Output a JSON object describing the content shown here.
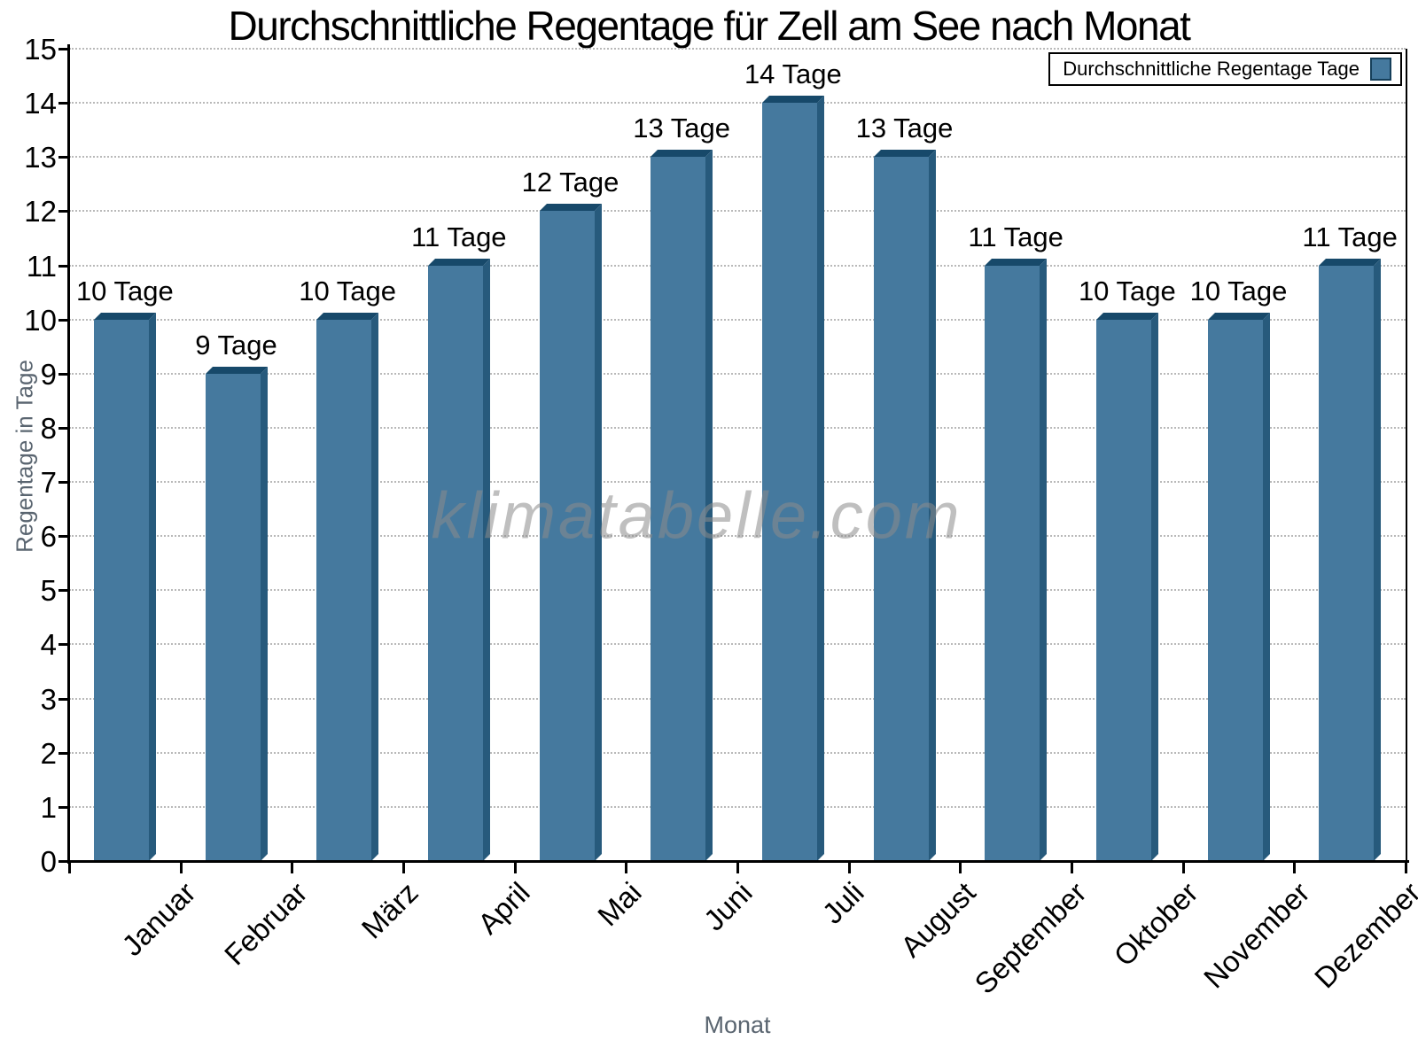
{
  "title": "Durchschnittliche Regentage für Zell am See nach Monat",
  "watermark": "klimatabelle.com",
  "legend": {
    "label": "Durchschnittliche Regentage Tage"
  },
  "y_axis": {
    "title": "Regentage in Tage",
    "tick_labels": [
      "0",
      "1",
      "2",
      "3",
      "4",
      "5",
      "6",
      "7",
      "8",
      "9",
      "10",
      "11",
      "12",
      "13",
      "14",
      "15"
    ]
  },
  "x_axis": {
    "title": "Monat"
  },
  "chart_data": {
    "type": "bar",
    "title": "Durchschnittliche Regentage für Zell am See nach Monat",
    "categories": [
      "Januar",
      "Februar",
      "März",
      "April",
      "Mai",
      "Juni",
      "Juli",
      "August",
      "September",
      "Oktober",
      "November",
      "Dezember"
    ],
    "values": [
      10,
      9,
      10,
      11,
      12,
      13,
      14,
      13,
      11,
      10,
      10,
      11
    ],
    "bar_labels": [
      "10 Tage",
      "9 Tage",
      "10 Tage",
      "11 Tage",
      "12 Tage",
      "13 Tage",
      "14 Tage",
      "13 Tage",
      "11 Tage",
      "10 Tage",
      "10 Tage",
      "11 Tage"
    ],
    "xlabel": "Monat",
    "ylabel": "Regentage in Tage",
    "ylim": [
      0,
      15
    ],
    "y_tick_step": 1,
    "grid": "horizontal-dotted",
    "legend": {
      "label": "Durchschnittliche Regentage Tage",
      "position": "top-right"
    },
    "watermark": "klimatabelle.com",
    "colors": {
      "bar_face": "#45799E",
      "bar_top": "#17496A",
      "bar_side": "#275A7C",
      "bar_border": "#153F5A",
      "grid": "#B9B9B9",
      "axis": "#000000",
      "axis_title": "#5A6570",
      "watermark": "#8C8C8C"
    }
  }
}
